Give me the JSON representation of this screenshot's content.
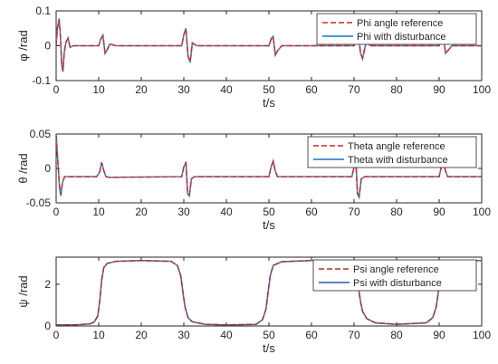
{
  "chart_data": [
    {
      "type": "line",
      "xlabel": "t/s",
      "ylabel": "φ /rad",
      "xlim": [
        0,
        100
      ],
      "ylim": [
        -0.1,
        0.1
      ],
      "x_ticks": [
        "0",
        "10",
        "20",
        "30",
        "40",
        "50",
        "60",
        "70",
        "80",
        "90",
        "100"
      ],
      "y_ticks": [
        "-0.1",
        "0",
        "0.1"
      ],
      "legend_position": "top-right",
      "grid": false,
      "series": [
        {
          "name": "Phi angle reference",
          "style": "dashed",
          "color": "#d62728",
          "points": [
            [
              0,
              0
            ],
            [
              0.3,
              0.05
            ],
            [
              0.7,
              0.075
            ],
            [
              1.0,
              0.03
            ],
            [
              1.3,
              -0.05
            ],
            [
              1.6,
              -0.072
            ],
            [
              1.9,
              -0.02
            ],
            [
              2.3,
              0.01
            ],
            [
              2.8,
              0.02
            ],
            [
              3.3,
              -0.005
            ],
            [
              4,
              0
            ],
            [
              10,
              0
            ],
            [
              10.5,
              0.018
            ],
            [
              11,
              0.028
            ],
            [
              11.5,
              -0.02
            ],
            [
              12,
              -0.012
            ],
            [
              12.6,
              0.005
            ],
            [
              14,
              0
            ],
            [
              29.5,
              0
            ],
            [
              30,
              0.03
            ],
            [
              30.5,
              0.048
            ],
            [
              31,
              -0.03
            ],
            [
              31.5,
              -0.045
            ],
            [
              32,
              0.008
            ],
            [
              33,
              0
            ],
            [
              50,
              0
            ],
            [
              50.5,
              0.018
            ],
            [
              51,
              0.025
            ],
            [
              51.5,
              -0.025
            ],
            [
              52,
              -0.015
            ],
            [
              53,
              0
            ],
            [
              70,
              0
            ],
            [
              70.5,
              0.03
            ],
            [
              71,
              0.042
            ],
            [
              71.5,
              -0.02
            ],
            [
              72,
              -0.035
            ],
            [
              72.8,
              0.008
            ],
            [
              74,
              0
            ],
            [
              90,
              0
            ],
            [
              90.5,
              0.015
            ],
            [
              91,
              0.028
            ],
            [
              91.5,
              -0.02
            ],
            [
              92,
              -0.015
            ],
            [
              93,
              0
            ],
            [
              100,
              0
            ]
          ]
        },
        {
          "name": "Phi with disturbance",
          "style": "solid",
          "color": "#3a86c8",
          "points": [
            [
              0,
              0
            ],
            [
              0.3,
              0.05
            ],
            [
              0.7,
              0.078
            ],
            [
              1.0,
              0.03
            ],
            [
              1.3,
              -0.055
            ],
            [
              1.6,
              -0.075
            ],
            [
              1.9,
              -0.02
            ],
            [
              2.3,
              0.01
            ],
            [
              2.8,
              0.022
            ],
            [
              3.3,
              -0.005
            ],
            [
              4,
              0
            ],
            [
              10,
              0
            ],
            [
              10.5,
              0.02
            ],
            [
              11,
              0.03
            ],
            [
              11.5,
              -0.022
            ],
            [
              12,
              -0.012
            ],
            [
              12.6,
              0.005
            ],
            [
              14,
              0
            ],
            [
              29.5,
              0
            ],
            [
              30,
              0.032
            ],
            [
              30.5,
              0.05
            ],
            [
              31,
              -0.03
            ],
            [
              31.5,
              -0.048
            ],
            [
              32,
              0.008
            ],
            [
              33,
              0
            ],
            [
              50,
              0
            ],
            [
              50.5,
              0.02
            ],
            [
              51,
              0.027
            ],
            [
              51.5,
              -0.027
            ],
            [
              52,
              -0.015
            ],
            [
              53,
              0
            ],
            [
              70,
              0
            ],
            [
              70.5,
              0.03
            ],
            [
              71,
              0.045
            ],
            [
              71.5,
              -0.02
            ],
            [
              72,
              -0.038
            ],
            [
              72.8,
              0.008
            ],
            [
              74,
              0
            ],
            [
              90,
              0
            ],
            [
              90.5,
              0.015
            ],
            [
              91,
              0.03
            ],
            [
              91.5,
              -0.022
            ],
            [
              92,
              -0.015
            ],
            [
              93,
              0
            ],
            [
              100,
              0
            ]
          ]
        }
      ]
    },
    {
      "type": "line",
      "xlabel": "t/s",
      "ylabel": "θ /rad",
      "xlim": [
        0,
        100
      ],
      "ylim": [
        -0.05,
        0.05
      ],
      "x_ticks": [
        "0",
        "10",
        "20",
        "30",
        "40",
        "50",
        "60",
        "70",
        "80",
        "90",
        "100"
      ],
      "y_ticks": [
        "-0.05",
        "0",
        "0.05"
      ],
      "legend_position": "top-right",
      "grid": false,
      "series": [
        {
          "name": "Theta angle reference",
          "style": "dashed",
          "color": "#d62728",
          "points": [
            [
              0,
              0.048
            ],
            [
              0.4,
              0.01
            ],
            [
              0.8,
              -0.025
            ],
            [
              1.1,
              -0.038
            ],
            [
              1.5,
              -0.02
            ],
            [
              2.0,
              -0.012
            ],
            [
              3,
              -0.012
            ],
            [
              9.5,
              -0.012
            ],
            [
              10.2,
              -0.006
            ],
            [
              10.7,
              0.008
            ],
            [
              11.2,
              -0.003
            ],
            [
              11.7,
              -0.012
            ],
            [
              12.5,
              -0.013
            ],
            [
              29.5,
              -0.012
            ],
            [
              30,
              0.002
            ],
            [
              30.5,
              0.008
            ],
            [
              30.9,
              -0.035
            ],
            [
              31.3,
              -0.038
            ],
            [
              31.8,
              -0.015
            ],
            [
              32.5,
              -0.012
            ],
            [
              50,
              -0.012
            ],
            [
              50.5,
              0.002
            ],
            [
              51,
              0.01
            ],
            [
              51.5,
              -0.004
            ],
            [
              52,
              -0.012
            ],
            [
              69.5,
              -0.012
            ],
            [
              70,
              0.002
            ],
            [
              70.4,
              0.014
            ],
            [
              70.8,
              -0.035
            ],
            [
              71.2,
              -0.04
            ],
            [
              71.7,
              -0.015
            ],
            [
              72.5,
              -0.012
            ],
            [
              90,
              -0.012
            ],
            [
              90.5,
              0.002
            ],
            [
              91,
              0.01
            ],
            [
              91.5,
              -0.004
            ],
            [
              92,
              -0.012
            ],
            [
              100,
              -0.012
            ]
          ]
        },
        {
          "name": "Theta with disturbance",
          "style": "solid",
          "color": "#3a86c8",
          "points": [
            [
              0,
              0.05
            ],
            [
              0.4,
              0.01
            ],
            [
              0.8,
              -0.028
            ],
            [
              1.1,
              -0.04
            ],
            [
              1.5,
              -0.02
            ],
            [
              2.0,
              -0.012
            ],
            [
              3,
              -0.012
            ],
            [
              9.5,
              -0.012
            ],
            [
              10.2,
              -0.006
            ],
            [
              10.7,
              0.009
            ],
            [
              11.2,
              -0.003
            ],
            [
              11.7,
              -0.012
            ],
            [
              12.5,
              -0.013
            ],
            [
              29.5,
              -0.012
            ],
            [
              30,
              0.002
            ],
            [
              30.5,
              0.009
            ],
            [
              30.9,
              -0.037
            ],
            [
              31.3,
              -0.04
            ],
            [
              31.8,
              -0.015
            ],
            [
              32.5,
              -0.012
            ],
            [
              50,
              -0.012
            ],
            [
              50.5,
              0.002
            ],
            [
              51,
              0.011
            ],
            [
              51.5,
              -0.004
            ],
            [
              52,
              -0.012
            ],
            [
              69.5,
              -0.012
            ],
            [
              70,
              0.002
            ],
            [
              70.4,
              0.015
            ],
            [
              70.8,
              -0.037
            ],
            [
              71.2,
              -0.042
            ],
            [
              71.7,
              -0.015
            ],
            [
              72.5,
              -0.012
            ],
            [
              90,
              -0.012
            ],
            [
              90.5,
              0.002
            ],
            [
              91,
              0.011
            ],
            [
              91.5,
              -0.004
            ],
            [
              92,
              -0.012
            ],
            [
              100,
              -0.012
            ]
          ]
        }
      ]
    },
    {
      "type": "line",
      "xlabel": "t/s",
      "ylabel": "ψ /rad",
      "xlim": [
        0,
        100
      ],
      "ylim": [
        0,
        3.3
      ],
      "x_ticks": [
        "0",
        "10",
        "20",
        "30",
        "40",
        "50",
        "60",
        "70",
        "80",
        "90",
        "100"
      ],
      "y_ticks": [
        "0",
        "2"
      ],
      "legend_position": "top-right",
      "grid": false,
      "series": [
        {
          "name": "Psi angle reference",
          "style": "dashed",
          "color": "#a83232",
          "points": [
            [
              0,
              0.05
            ],
            [
              5,
              0.06
            ],
            [
              8,
              0.1
            ],
            [
              9,
              0.2
            ],
            [
              9.8,
              0.5
            ],
            [
              10.3,
              1.3
            ],
            [
              10.7,
              2.2
            ],
            [
              11.2,
              2.8
            ],
            [
              12,
              3.0
            ],
            [
              14,
              3.1
            ],
            [
              20,
              3.14
            ],
            [
              27,
              3.1
            ],
            [
              28.5,
              2.9
            ],
            [
              29.3,
              2.4
            ],
            [
              29.8,
              1.6
            ],
            [
              30.3,
              0.9
            ],
            [
              31,
              0.4
            ],
            [
              32,
              0.2
            ],
            [
              35,
              0.08
            ],
            [
              40,
              0.05
            ],
            [
              47,
              0.08
            ],
            [
              48.5,
              0.3
            ],
            [
              49.3,
              0.8
            ],
            [
              49.8,
              1.6
            ],
            [
              50.3,
              2.4
            ],
            [
              51,
              2.9
            ],
            [
              53,
              3.08
            ],
            [
              60,
              3.14
            ],
            [
              69,
              3.14
            ],
            [
              70,
              3.14
            ],
            [
              70.6,
              2.6
            ],
            [
              71,
              1.9
            ],
            [
              71.5,
              1.2
            ],
            [
              72,
              0.7
            ],
            [
              73,
              0.35
            ],
            [
              75,
              0.15
            ],
            [
              80,
              0.08
            ],
            [
              87,
              0.15
            ],
            [
              88.5,
              0.4
            ],
            [
              89.3,
              0.9
            ],
            [
              89.8,
              1.6
            ],
            [
              90.3,
              2.4
            ],
            [
              91,
              2.9
            ],
            [
              92,
              3.05
            ],
            [
              95,
              3.12
            ],
            [
              100,
              3.14
            ]
          ]
        },
        {
          "name": "Psi with disturbance",
          "style": "solid",
          "color": "#4a6fbf",
          "points": [
            [
              0,
              0.05
            ],
            [
              5,
              0.06
            ],
            [
              8,
              0.1
            ],
            [
              9,
              0.2
            ],
            [
              9.8,
              0.5
            ],
            [
              10.3,
              1.3
            ],
            [
              10.7,
              2.2
            ],
            [
              11.2,
              2.8
            ],
            [
              12,
              3.0
            ],
            [
              14,
              3.1
            ],
            [
              20,
              3.14
            ],
            [
              27,
              3.1
            ],
            [
              28.5,
              2.9
            ],
            [
              29.3,
              2.4
            ],
            [
              29.8,
              1.6
            ],
            [
              30.3,
              0.9
            ],
            [
              31,
              0.4
            ],
            [
              32,
              0.2
            ],
            [
              35,
              0.08
            ],
            [
              40,
              0.05
            ],
            [
              47,
              0.08
            ],
            [
              48.5,
              0.3
            ],
            [
              49.3,
              0.8
            ],
            [
              49.8,
              1.6
            ],
            [
              50.3,
              2.4
            ],
            [
              51,
              2.9
            ],
            [
              53,
              3.08
            ],
            [
              60,
              3.14
            ],
            [
              69,
              3.14
            ],
            [
              70,
              3.14
            ],
            [
              70.6,
              2.6
            ],
            [
              71,
              1.9
            ],
            [
              71.5,
              1.2
            ],
            [
              72,
              0.7
            ],
            [
              73,
              0.35
            ],
            [
              75,
              0.15
            ],
            [
              80,
              0.08
            ],
            [
              87,
              0.15
            ],
            [
              88.5,
              0.4
            ],
            [
              89.3,
              0.9
            ],
            [
              89.8,
              1.6
            ],
            [
              90.3,
              2.4
            ],
            [
              91,
              2.9
            ],
            [
              92,
              3.05
            ],
            [
              95,
              3.12
            ],
            [
              100,
              3.14
            ]
          ]
        }
      ]
    }
  ]
}
